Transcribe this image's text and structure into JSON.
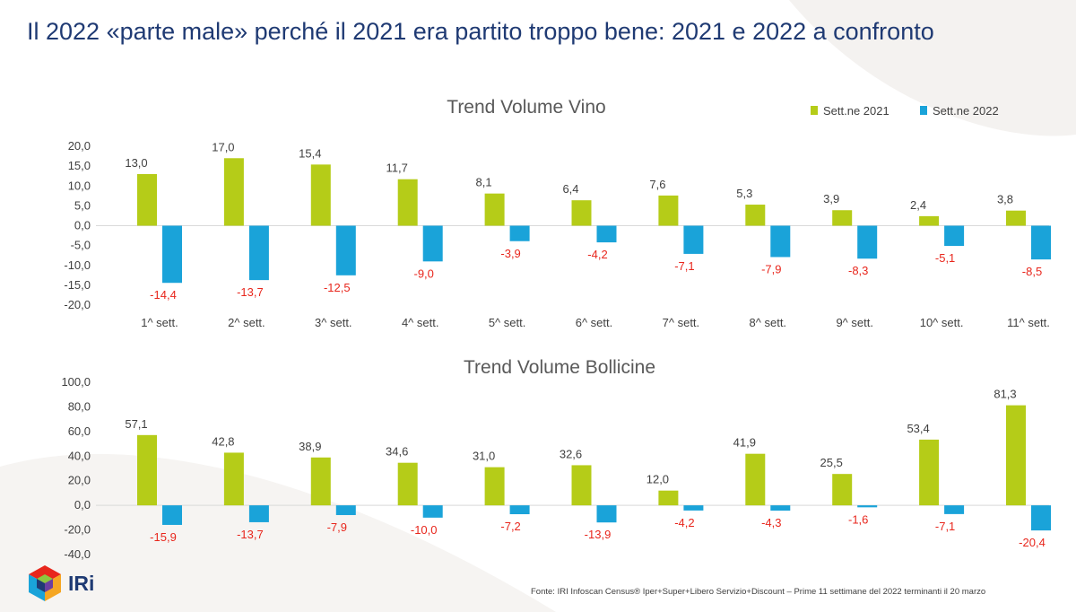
{
  "page": {
    "title": "Il 2022 «parte male» perché il 2021 era partito troppo bene: 2021 e 2022 a confronto",
    "source": "Fonte: IRI  Infoscan Census®  Iper+Super+Libero Servizio+Discount – Prime 11 settimane del 2022 terminanti il 20 marzo",
    "logo_text": "IRi"
  },
  "colors": {
    "s2021": "#b5cc18",
    "s2022": "#1aa3d9",
    "negLabel": "#e8261c",
    "title": "#1f3a73"
  },
  "chart_data": [
    {
      "type": "bar",
      "title": "Trend Volume Vino",
      "categories": [
        "1^ sett.",
        "2^ sett.",
        "3^ sett.",
        "4^ sett.",
        "5^ sett.",
        "6^ sett.",
        "7^ sett.",
        "8^ sett.",
        "9^ sett.",
        "10^ sett.",
        "11^ sett."
      ],
      "series": [
        {
          "name": "Sett.ne 2021",
          "values": [
            13.0,
            17.0,
            15.4,
            11.7,
            8.1,
            6.4,
            7.6,
            5.3,
            3.9,
            2.4,
            3.8
          ]
        },
        {
          "name": "Sett.ne 2022",
          "values": [
            -14.4,
            -13.7,
            -12.5,
            -9.0,
            -3.9,
            -4.2,
            -7.1,
            -7.9,
            -8.3,
            -5.1,
            -8.5
          ]
        }
      ],
      "ylim": [
        -20,
        20
      ],
      "yticks": [
        20,
        15,
        10,
        5,
        0,
        -5,
        -10,
        -15,
        -20
      ],
      "legend": "top-right"
    },
    {
      "type": "bar",
      "title": "Trend Volume Bollicine",
      "categories": [
        "1^ sett.",
        "2^ sett.",
        "3^ sett.",
        "4^ sett.",
        "5^ sett.",
        "6^ sett.",
        "7^ sett.",
        "8^ sett.",
        "9^ sett.",
        "10^ sett.",
        "11^ sett."
      ],
      "series": [
        {
          "name": "Sett.ne 2021",
          "values": [
            57.1,
            42.8,
            38.9,
            34.6,
            31.0,
            32.6,
            12.0,
            41.9,
            25.5,
            53.4,
            81.3
          ]
        },
        {
          "name": "Sett.ne 2022",
          "values": [
            -15.9,
            -13.7,
            -7.9,
            -10.0,
            -7.2,
            -13.9,
            -4.2,
            -4.3,
            -1.6,
            -7.1,
            -20.4
          ]
        }
      ],
      "ylim": [
        -40,
        100
      ],
      "yticks": [
        100,
        80,
        60,
        40,
        20,
        0,
        -20,
        -40
      ]
    }
  ]
}
